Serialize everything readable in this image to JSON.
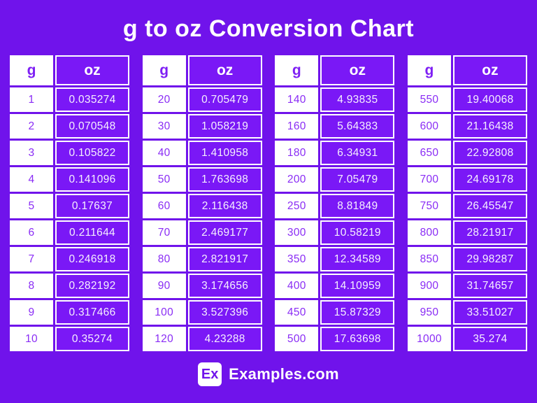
{
  "title": "g to oz Conversion Chart",
  "colors": {
    "background": "#7013EB",
    "cell_purple": "#7A18F6",
    "text_purple": "#8A2CF5",
    "white": "#FFFFFF",
    "off_white": "#F6F0FE"
  },
  "footer": {
    "logo_text": "Ex",
    "site_name": "Examples.com"
  },
  "chart_data": {
    "type": "table",
    "title": "g to oz Conversion Chart",
    "columns": [
      "g",
      "oz"
    ],
    "tables": [
      {
        "headers": [
          "g",
          "oz"
        ],
        "rows": [
          [
            "1",
            "0.035274"
          ],
          [
            "2",
            "0.070548"
          ],
          [
            "3",
            "0.105822"
          ],
          [
            "4",
            "0.141096"
          ],
          [
            "5",
            "0.17637"
          ],
          [
            "6",
            "0.211644"
          ],
          [
            "7",
            "0.246918"
          ],
          [
            "8",
            "0.282192"
          ],
          [
            "9",
            "0.317466"
          ],
          [
            "10",
            "0.35274"
          ]
        ]
      },
      {
        "headers": [
          "g",
          "oz"
        ],
        "rows": [
          [
            "20",
            "0.705479"
          ],
          [
            "30",
            "1.058219"
          ],
          [
            "40",
            "1.410958"
          ],
          [
            "50",
            "1.763698"
          ],
          [
            "60",
            "2.116438"
          ],
          [
            "70",
            "2.469177"
          ],
          [
            "80",
            "2.821917"
          ],
          [
            "90",
            "3.174656"
          ],
          [
            "100",
            "3.527396"
          ],
          [
            "120",
            "4.23288"
          ]
        ]
      },
      {
        "headers": [
          "g",
          "oz"
        ],
        "rows": [
          [
            "140",
            "4.93835"
          ],
          [
            "160",
            "5.64383"
          ],
          [
            "180",
            "6.34931"
          ],
          [
            "200",
            "7.05479"
          ],
          [
            "250",
            "8.81849"
          ],
          [
            "300",
            "10.58219"
          ],
          [
            "350",
            "12.34589"
          ],
          [
            "400",
            "14.10959"
          ],
          [
            "450",
            "15.87329"
          ],
          [
            "500",
            "17.63698"
          ]
        ]
      },
      {
        "headers": [
          "g",
          "oz"
        ],
        "rows": [
          [
            "550",
            "19.40068"
          ],
          [
            "600",
            "21.16438"
          ],
          [
            "650",
            "22.92808"
          ],
          [
            "700",
            "24.69178"
          ],
          [
            "750",
            "26.45547"
          ],
          [
            "800",
            "28.21917"
          ],
          [
            "850",
            "29.98287"
          ],
          [
            "900",
            "31.74657"
          ],
          [
            "950",
            "33.51027"
          ],
          [
            "1000",
            "35.274"
          ]
        ]
      }
    ]
  }
}
